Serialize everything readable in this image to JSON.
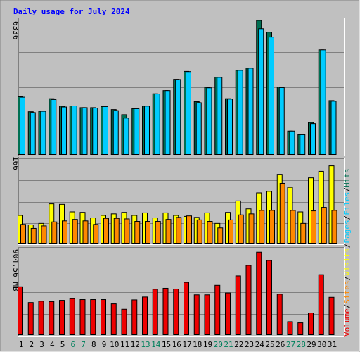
{
  "chart_data": {
    "type": "bar",
    "title": "Daily usage for July 2024",
    "colors": {
      "hits": "#006f52",
      "files": "#00ccff",
      "pages": "#00ccff",
      "visits": "#ffff00",
      "sites": "#ff8800",
      "volume": "#ee0000",
      "weekend_day": "#00805c",
      "weekday": "#000000",
      "title": "#0000ff",
      "background": "#c0c0c0"
    },
    "days": [
      "1",
      "2",
      "3",
      "4",
      "5",
      "6",
      "7",
      "8",
      "9",
      "10",
      "11",
      "12",
      "13",
      "14",
      "15",
      "16",
      "17",
      "18",
      "19",
      "20",
      "21",
      "22",
      "23",
      "24",
      "25",
      "26",
      "27",
      "28",
      "29",
      "30",
      "31"
    ],
    "weekend": [
      6,
      7,
      13,
      14,
      20,
      21,
      27,
      28
    ],
    "panels": {
      "top": {
        "max_label": "6336",
        "max": 6336,
        "series": [
          {
            "name": "Hits",
            "values": [
              2740,
              2040,
              2060,
              2650,
              2300,
              2310,
              2230,
              2230,
              2280,
              2140,
              1900,
              2180,
              2300,
              2880,
              3030,
              3560,
              3930,
              2510,
              3180,
              3660,
              2650,
              3980,
              4090,
              6320,
              5770,
              3200,
              1130,
              960,
              1530,
              4940,
              2560
            ]
          },
          {
            "name": "Files",
            "values": [
              2720,
              2000,
              2060,
              2610,
              2260,
              2310,
              2230,
              2210,
              2280,
              2090,
              1740,
              2180,
              2300,
              2870,
              3030,
              3550,
              3920,
              2460,
              3160,
              3650,
              2630,
              3980,
              4080,
              5930,
              5540,
              3170,
              1130,
              960,
              1480,
              4940,
              2530
            ]
          }
        ]
      },
      "middle": {
        "max_label": "166",
        "max": 166,
        "series": [
          {
            "name": "Visits",
            "values": [
              57,
              38,
              41,
              80,
              79,
              64,
              63,
              52,
              57,
              60,
              63,
              57,
              62,
              52,
              62,
              57,
              55,
              53,
              62,
              41,
              63,
              86,
              70,
              102,
              105,
              139,
              113,
              64,
              132,
              145,
              156
            ]
          },
          {
            "name": "Sites",
            "values": [
              39,
              31,
              36,
              44,
              46,
              49,
              46,
              39,
              51,
              51,
              50,
              45,
              45,
              45,
              49,
              53,
              56,
              48,
              45,
              32,
              48,
              58,
              60,
              67,
              67,
              121,
              67,
              41,
              66,
              73,
              67
            ]
          }
        ]
      },
      "bottom": {
        "max_label": "904.56 MB",
        "max": 904.56,
        "series": [
          {
            "name": "Volume",
            "values": [
              513,
              347,
              361,
              357,
              370,
              387,
              378,
              378,
              378,
              333,
              276,
              375,
              405,
              487,
              497,
              489,
              559,
              428,
              428,
              528,
              448,
              627,
              738,
              877,
              790,
              435,
              145,
              133,
              237,
              640,
              402
            ]
          }
        ]
      }
    },
    "legend": {
      "entries": [
        "Volume",
        "Sites",
        "Visits",
        "Pages",
        "Files",
        "Hits"
      ],
      "separator": "/"
    }
  }
}
